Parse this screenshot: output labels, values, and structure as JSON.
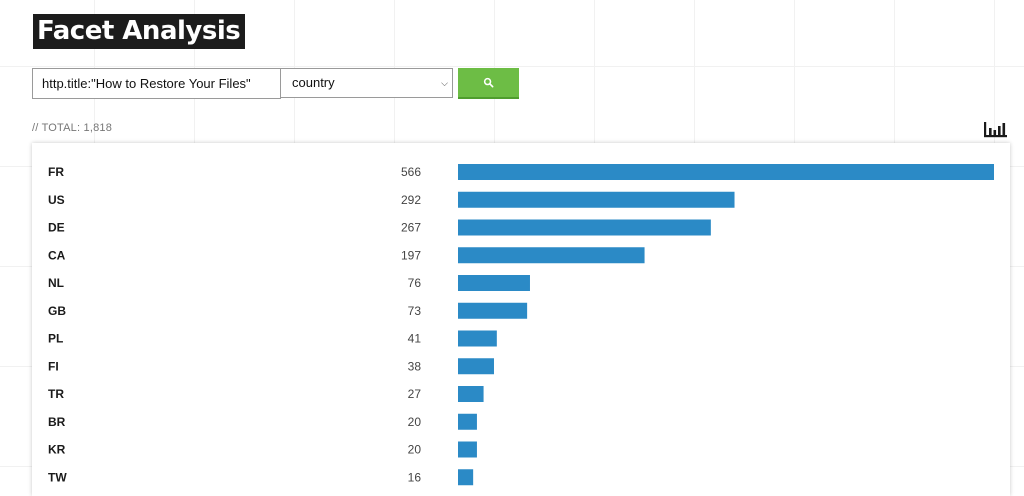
{
  "page": {
    "title": "Facet Analysis"
  },
  "search": {
    "query": "http.title:\"How to Restore Your Files\"",
    "facet": "country",
    "button_icon": "search-icon"
  },
  "total_label": "// TOTAL: 1,818",
  "chart_toggle_icon": "bar-chart-icon",
  "colors": {
    "bar": "#2b8ac6",
    "button": "#6dbd45",
    "title_bg": "#1c1c1c"
  },
  "chart_data": {
    "type": "bar",
    "orientation": "horizontal",
    "categories": [
      "FR",
      "US",
      "DE",
      "CA",
      "NL",
      "GB",
      "PL",
      "FI",
      "TR",
      "BR",
      "KR",
      "TW"
    ],
    "values": [
      566,
      292,
      267,
      197,
      76,
      73,
      41,
      38,
      27,
      20,
      20,
      16
    ],
    "value_labels": [
      "566",
      "292",
      "267",
      "197",
      "76",
      "73",
      "41",
      "38",
      "27",
      "20",
      "20",
      "16"
    ],
    "xlim": [
      0,
      566
    ]
  }
}
